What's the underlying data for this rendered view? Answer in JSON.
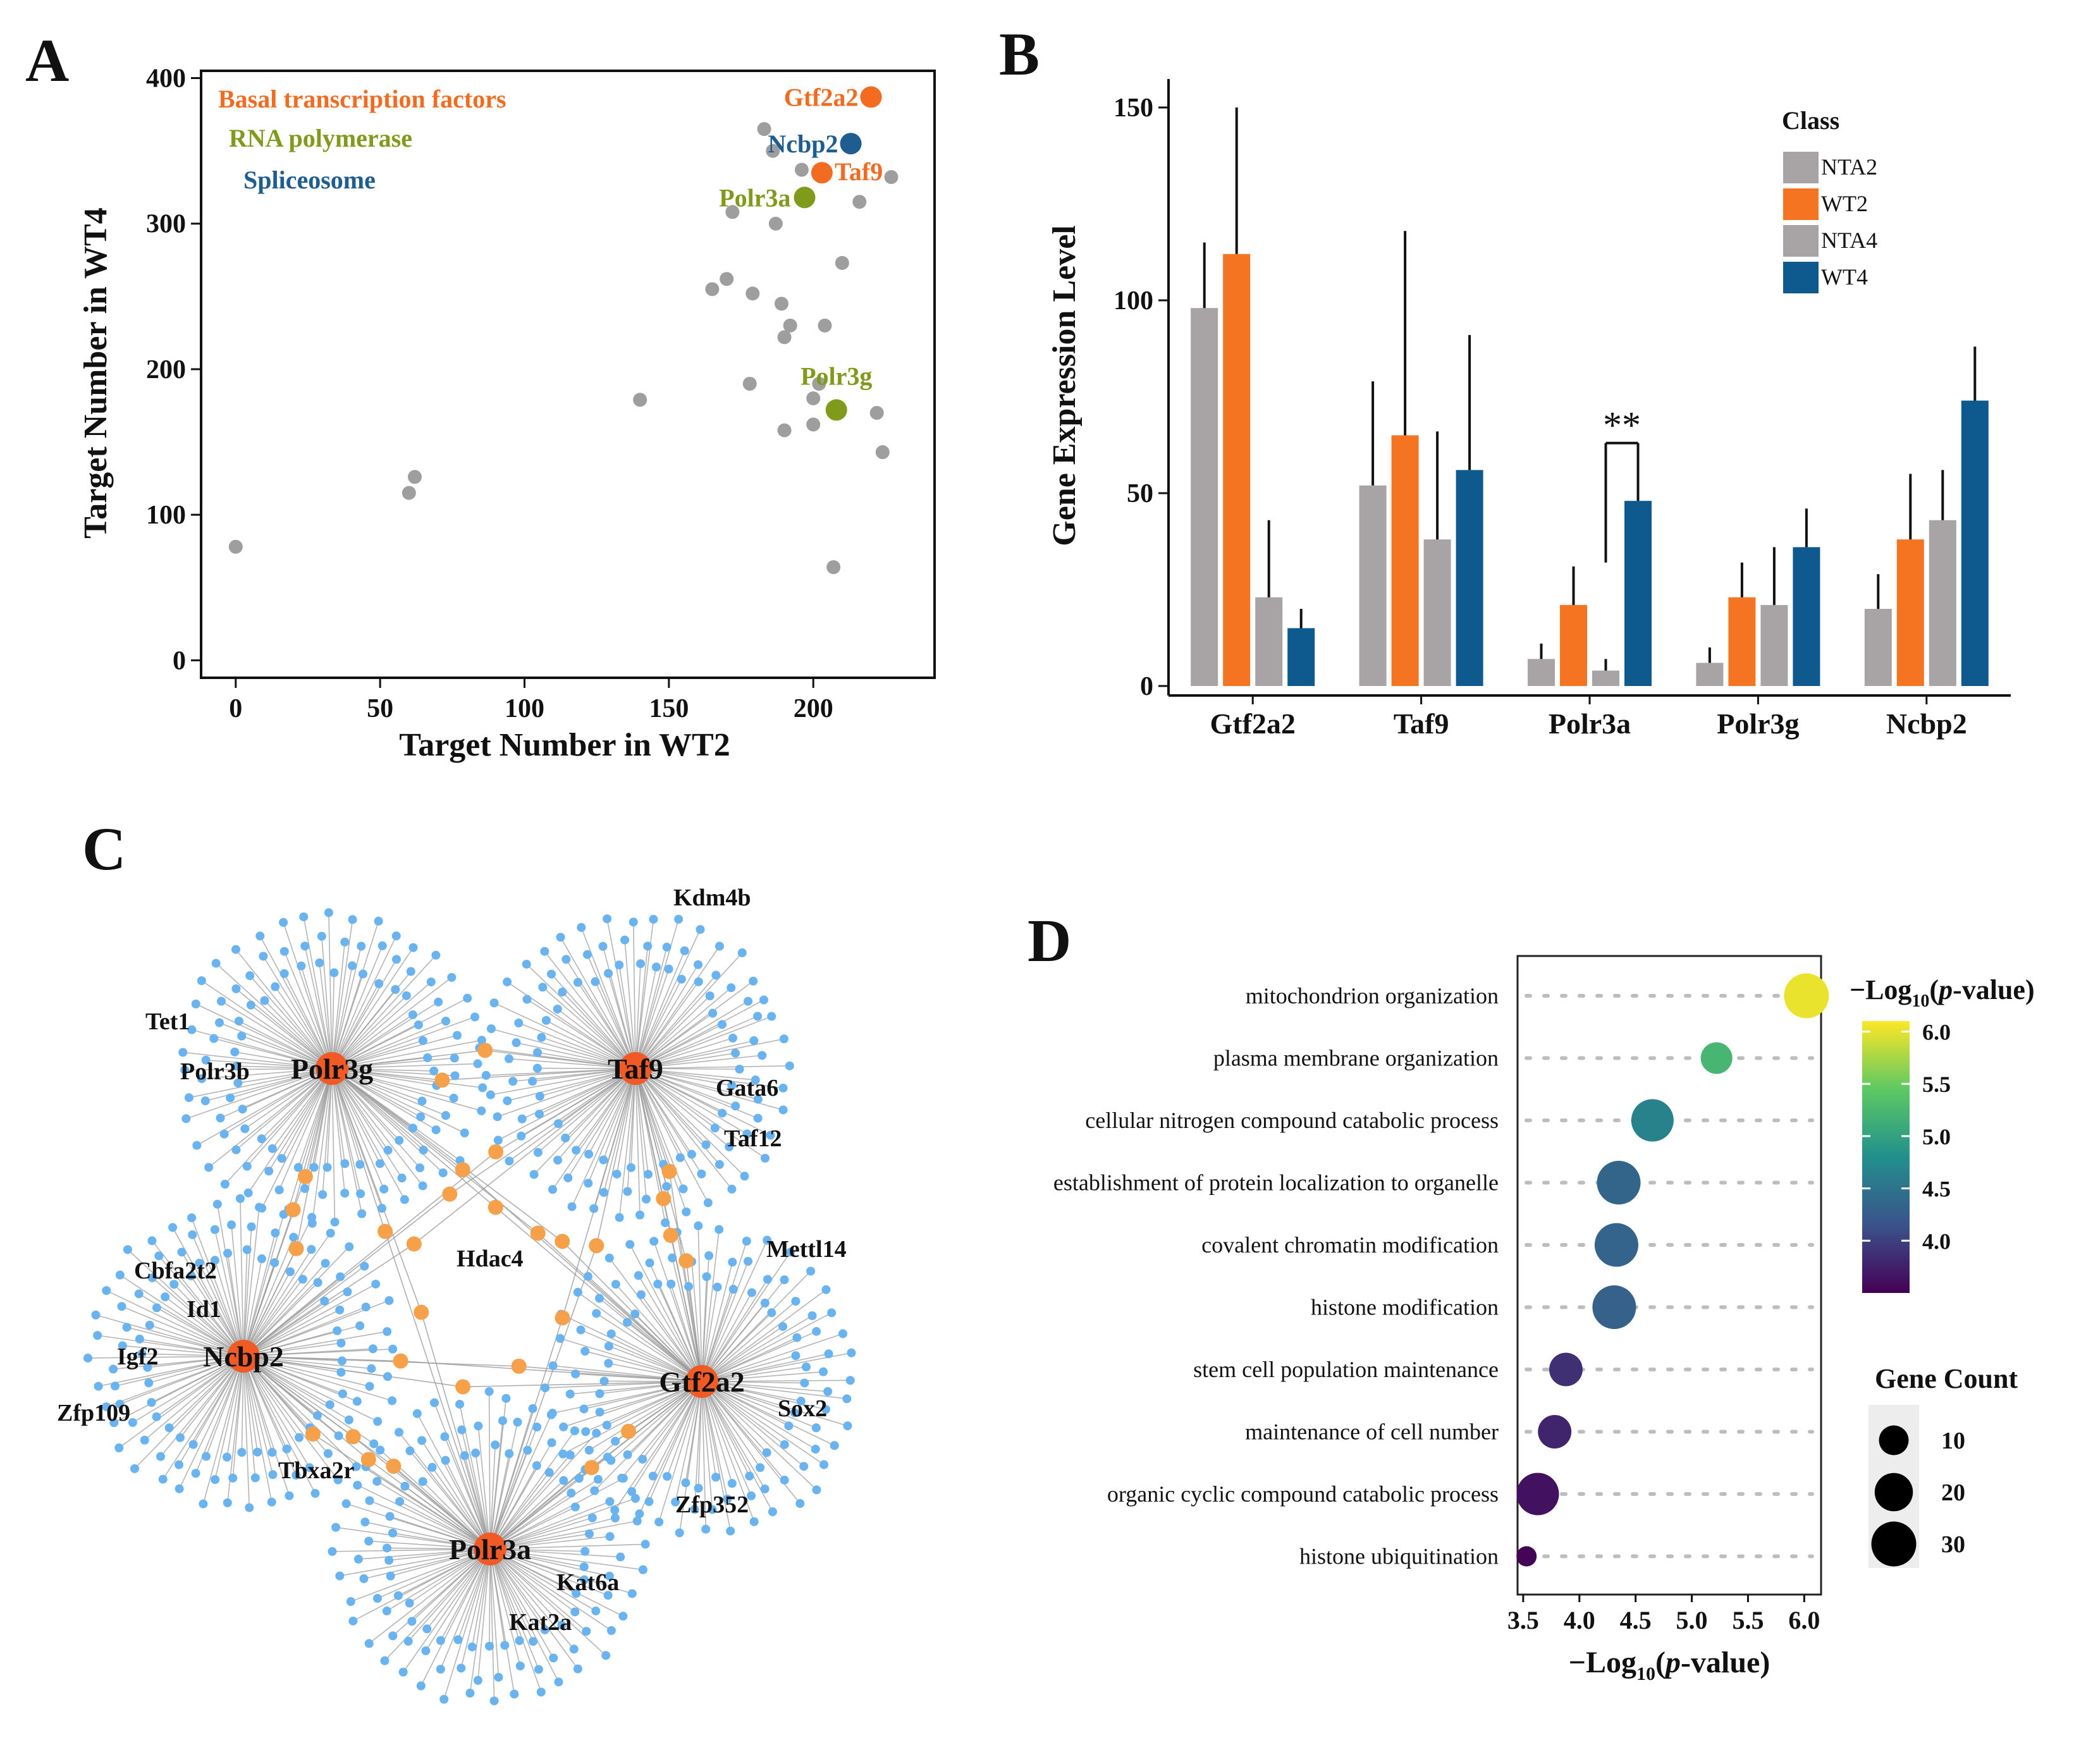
{
  "panels": {
    "A": {
      "letter": "A",
      "chart_data": {
        "type": "scatter",
        "xlabel": "Target Number in WT2",
        "ylabel": "Target Number in WT4",
        "xlim": [
          -12,
          242
        ],
        "ylim": [
          -12,
          405
        ],
        "xticks": [
          0,
          50,
          100,
          150,
          200
        ],
        "yticks": [
          0,
          100,
          200,
          300,
          400
        ],
        "background_points": [
          [
            0,
            78
          ],
          [
            60,
            115
          ],
          [
            62,
            126
          ],
          [
            140,
            179
          ],
          [
            165,
            255
          ],
          [
            170,
            262
          ],
          [
            172,
            308
          ],
          [
            178,
            190
          ],
          [
            179,
            252
          ],
          [
            183,
            365
          ],
          [
            186,
            350
          ],
          [
            187,
            300
          ],
          [
            189,
            245
          ],
          [
            190,
            158
          ],
          [
            190,
            222
          ],
          [
            192,
            230
          ],
          [
            196,
            337
          ],
          [
            200,
            180
          ],
          [
            200,
            162
          ],
          [
            202,
            190
          ],
          [
            204,
            230
          ],
          [
            207,
            64
          ],
          [
            210,
            273
          ],
          [
            216,
            315
          ],
          [
            222,
            170
          ],
          [
            224,
            143
          ],
          [
            227,
            332
          ]
        ],
        "series": [
          {
            "name": "Basal transcription factors",
            "color": "#F26B21",
            "points": [
              {
                "label": "Gtf2a2",
                "x": 220,
                "y": 387
              },
              {
                "label": "Taf9",
                "x": 203,
                "y": 335
              }
            ]
          },
          {
            "name": "RNA polymerase",
            "color": "#809A1B",
            "points": [
              {
                "label": "Polr3a",
                "x": 197,
                "y": 318
              },
              {
                "label": "Polr3g",
                "x": 208,
                "y": 172
              }
            ]
          },
          {
            "name": "Spliceosome",
            "color": "#1F5D91",
            "points": [
              {
                "label": "Ncbp2",
                "x": 213,
                "y": 355
              }
            ]
          }
        ],
        "background_color": "#9E9E9E"
      }
    },
    "B": {
      "letter": "B",
      "chart_data": {
        "type": "bar",
        "ylabel": "Gene Expression Level",
        "categories": [
          "Gtf2a2",
          "Taf9",
          "Polr3a",
          "Polr3g",
          "Ncbp2"
        ],
        "ylim": [
          0,
          160
        ],
        "yticks": [
          0,
          50,
          100,
          150
        ],
        "legend_title": "Class",
        "series": [
          {
            "name": "NTA2",
            "color": "#A8A4A5",
            "values": [
              98,
              52,
              7,
              6,
              20
            ],
            "errors": [
              17,
              27,
              4,
              4,
              9
            ]
          },
          {
            "name": "WT2",
            "color": "#F47421",
            "values": [
              112,
              65,
              21,
              23,
              38
            ],
            "errors": [
              38,
              53,
              10,
              9,
              17
            ]
          },
          {
            "name": "NTA4",
            "color": "#A8A4A5",
            "values": [
              23,
              38,
              4,
              21,
              43
            ],
            "errors": [
              20,
              28,
              3,
              15,
              13
            ]
          },
          {
            "name": "WT4",
            "color": "#0E5A8E",
            "values": [
              15,
              56,
              48,
              36,
              74
            ],
            "errors": [
              5,
              35,
              13,
              10,
              14
            ]
          }
        ],
        "significance": {
          "category": "Polr3a",
          "between": [
            "NTA4",
            "WT4"
          ],
          "label": "**"
        }
      }
    },
    "C": {
      "letter": "C",
      "hub_color": "#F15A24",
      "leaf_color": "#69B3F0",
      "shared_color": "#F7A04A",
      "edge_color": "#9B9B9B",
      "hubs": [
        "Polr3g",
        "Taf9",
        "Ncbp2",
        "Gtf2a2",
        "Polr3a"
      ],
      "labels": {
        "tet1": "Tet1",
        "polr3b": "Polr3b",
        "kdm4b": "Kdm4b",
        "gata6": "Gata6",
        "taf12": "Taf12",
        "cbfa2t2": "Cbfa2t2",
        "id1": "Id1",
        "igf2": "Igf2",
        "zfp109": "Zfp109",
        "hdac4": "Hdac4",
        "mettl14": "Mettl14",
        "sox2": "Sox2",
        "tbxa2r": "Tbxa2r",
        "zfp352": "Zfp352",
        "kat6a": "Kat6a",
        "kat2a": "Kat2a"
      }
    },
    "D": {
      "letter": "D",
      "chart_data": {
        "type": "scatter",
        "xlabel_main": "−Log",
        "xlabel_sub": "10",
        "xlabel_paren": "(",
        "xlabel_p": "p",
        "xlabel_rest": "-value)",
        "xlim": [
          3.45,
          6.15
        ],
        "xticks": [
          3.5,
          4.0,
          4.5,
          5.0,
          5.5,
          6.0
        ],
        "xtick_labels": [
          "3.5",
          "4.0",
          "4.5",
          "5.0",
          "5.5",
          "6.0"
        ],
        "terms": [
          {
            "term": "mitochondrion organization",
            "neglog10p": 6.02,
            "count": 30
          },
          {
            "term": "plasma membrane organization",
            "neglog10p": 5.22,
            "count": 12
          },
          {
            "term": "cellular nitrogen compound catabolic process",
            "neglog10p": 4.65,
            "count": 26
          },
          {
            "term": "establishment of protein localization to organelle",
            "neglog10p": 4.35,
            "count": 28
          },
          {
            "term": "covalent chromatin modification",
            "neglog10p": 4.33,
            "count": 28
          },
          {
            "term": "histone modification",
            "neglog10p": 4.31,
            "count": 28
          },
          {
            "term": "stem cell population maintenance",
            "neglog10p": 3.88,
            "count": 14
          },
          {
            "term": "maintenance of cell number",
            "neglog10p": 3.78,
            "count": 14
          },
          {
            "term": "organic cyclic compound catabolic process",
            "neglog10p": 3.63,
            "count": 26
          },
          {
            "term": "histone ubiquitination",
            "neglog10p": 3.53,
            "count": 3
          }
        ],
        "colorbar": {
          "title_main": "−Log",
          "title_sub": "10",
          "title_paren": "(",
          "title_p": "p",
          "title_rest": "-value)",
          "min": 3.5,
          "max": 6.1,
          "ticks": [
            6.0,
            5.5,
            5.0,
            4.5,
            4.0
          ],
          "tick_labels": [
            "6.0",
            "5.5",
            "5.0",
            "4.5",
            "4.0"
          ]
        },
        "size_legend": {
          "title": "Gene Count",
          "values": [
            10,
            20,
            30
          ],
          "labels": [
            "10",
            "20",
            "30"
          ]
        }
      }
    }
  }
}
